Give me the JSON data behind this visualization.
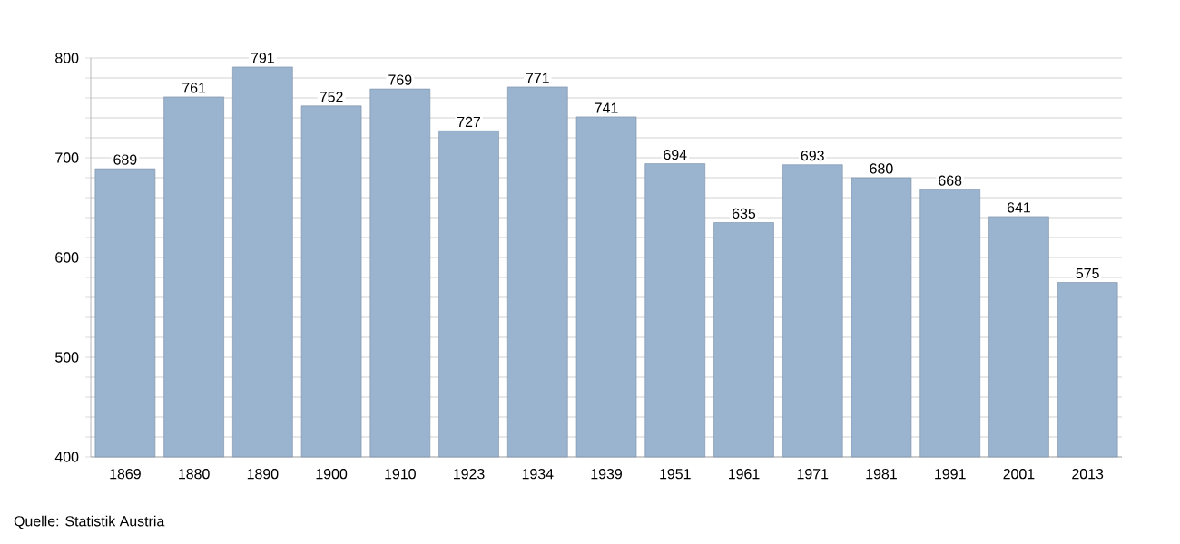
{
  "chart_data": {
    "type": "bar",
    "categories": [
      "1869",
      "1880",
      "1890",
      "1900",
      "1910",
      "1923",
      "1934",
      "1939",
      "1951",
      "1961",
      "1971",
      "1981",
      "1991",
      "2001",
      "2013"
    ],
    "values": [
      689,
      761,
      791,
      752,
      769,
      727,
      771,
      741,
      694,
      635,
      693,
      680,
      668,
      641,
      575
    ],
    "color": "#9ab3cf",
    "ylim": [
      400,
      800
    ],
    "yticks": [
      400,
      {
        "value": 420,
        "label": null
      },
      {
        "value": 440,
        "label": null
      },
      {
        "value": 460,
        "label": null
      },
      {
        "value": 480,
        "label": null
      },
      500,
      {
        "value": 520,
        "label": null
      },
      {
        "value": 540,
        "label": null
      },
      {
        "value": 560,
        "label": null
      },
      {
        "value": 580,
        "label": null
      },
      600,
      {
        "value": 620,
        "label": null
      },
      {
        "value": 640,
        "label": null
      },
      {
        "value": 660,
        "label": null
      },
      {
        "value": 680,
        "label": null
      },
      700,
      {
        "value": 720,
        "label": null
      },
      {
        "value": 740,
        "label": null
      },
      {
        "value": 760,
        "label": null
      },
      {
        "value": 780,
        "label": null
      },
      800
    ],
    "grid": "y",
    "data_labels": true,
    "annotations": [
      "Quelle: Statistik Austria"
    ]
  }
}
